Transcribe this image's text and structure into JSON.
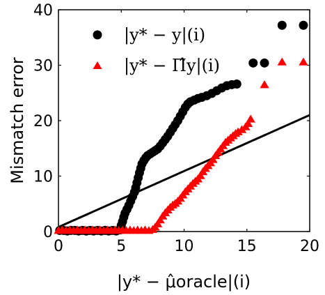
{
  "chart_data": {
    "type": "scatter",
    "title": "",
    "xlabel": "|y* − μ̂oracle|(i)",
    "ylabel": "Mismatch error",
    "xlim": [
      0,
      20
    ],
    "ylim": [
      0,
      40
    ],
    "xticks": [
      "0",
      "5",
      "10",
      "15",
      "20"
    ],
    "yticks": [
      "0",
      "10",
      "20",
      "30",
      "40"
    ],
    "grid": false,
    "legend_position": "top-right",
    "series": [
      {
        "name": "|y* − y|(i)",
        "marker": "circle",
        "color": "#000000",
        "points": [
          [
            0.1,
            0.2
          ],
          [
            0.4,
            0.2
          ],
          [
            0.7,
            0.1
          ],
          [
            1.0,
            0.2
          ],
          [
            1.3,
            0.2
          ],
          [
            1.6,
            0.1
          ],
          [
            1.9,
            0.2
          ],
          [
            2.2,
            0.1
          ],
          [
            2.5,
            0.2
          ],
          [
            2.8,
            0.1
          ],
          [
            3.1,
            0.2
          ],
          [
            3.4,
            0.1
          ],
          [
            3.7,
            0.2
          ],
          [
            4.0,
            0.1
          ],
          [
            4.3,
            0.2
          ],
          [
            4.6,
            0.1
          ],
          [
            4.9,
            0.3
          ],
          [
            4.95,
            0.6
          ],
          [
            5.0,
            1.1
          ],
          [
            5.1,
            1.8
          ],
          [
            5.2,
            2.6
          ],
          [
            5.3,
            3.3
          ],
          [
            5.45,
            4.0
          ],
          [
            5.6,
            4.7
          ],
          [
            5.75,
            5.5
          ],
          [
            5.9,
            6.3
          ],
          [
            6.05,
            7.1
          ],
          [
            6.15,
            7.9
          ],
          [
            6.25,
            8.8
          ],
          [
            6.35,
            9.7
          ],
          [
            6.45,
            10.6
          ],
          [
            6.55,
            11.4
          ],
          [
            6.65,
            12.2
          ],
          [
            6.8,
            12.8
          ],
          [
            6.95,
            13.3
          ],
          [
            7.1,
            13.7
          ],
          [
            7.3,
            14.0
          ],
          [
            7.5,
            14.3
          ],
          [
            7.7,
            14.6
          ],
          [
            7.9,
            14.9
          ],
          [
            8.1,
            15.4
          ],
          [
            8.3,
            16.0
          ],
          [
            8.5,
            16.6
          ],
          [
            8.7,
            17.2
          ],
          [
            8.9,
            17.9
          ],
          [
            9.1,
            18.6
          ],
          [
            9.3,
            19.3
          ],
          [
            9.5,
            20.0
          ],
          [
            9.7,
            20.8
          ],
          [
            9.9,
            21.6
          ],
          [
            10.1,
            22.4
          ],
          [
            10.3,
            23.0
          ],
          [
            10.5,
            23.4
          ],
          [
            10.8,
            23.7
          ],
          [
            11.1,
            24.0
          ],
          [
            11.4,
            24.2
          ],
          [
            11.8,
            24.5
          ],
          [
            12.2,
            24.9
          ],
          [
            12.6,
            25.4
          ],
          [
            13.0,
            25.9
          ],
          [
            13.4,
            26.3
          ],
          [
            13.8,
            26.5
          ],
          [
            14.2,
            26.6
          ],
          [
            15.5,
            30.4
          ],
          [
            16.4,
            30.4
          ],
          [
            17.8,
            37.2
          ],
          [
            19.5,
            37.2
          ]
        ]
      },
      {
        "name": "|y* − Π̂y|(i)",
        "marker": "triangle",
        "color": "#ff0000",
        "points": [
          [
            0.0,
            0.1
          ],
          [
            0.3,
            0.2
          ],
          [
            0.6,
            0.1
          ],
          [
            0.9,
            0.2
          ],
          [
            1.2,
            0.1
          ],
          [
            1.5,
            0.2
          ],
          [
            1.8,
            0.1
          ],
          [
            2.1,
            0.2
          ],
          [
            2.4,
            0.1
          ],
          [
            2.7,
            0.2
          ],
          [
            3.0,
            0.1
          ],
          [
            3.3,
            0.2
          ],
          [
            3.6,
            0.1
          ],
          [
            3.9,
            0.2
          ],
          [
            4.2,
            0.1
          ],
          [
            4.5,
            0.2
          ],
          [
            4.8,
            0.1
          ],
          [
            5.1,
            0.2
          ],
          [
            5.4,
            0.1
          ],
          [
            5.7,
            0.2
          ],
          [
            6.0,
            0.1
          ],
          [
            6.3,
            0.2
          ],
          [
            6.6,
            0.1
          ],
          [
            6.9,
            0.2
          ],
          [
            7.2,
            0.1
          ],
          [
            7.5,
            0.3
          ],
          [
            7.7,
            0.7
          ],
          [
            7.9,
            1.3
          ],
          [
            8.1,
            2.0
          ],
          [
            8.3,
            2.7
          ],
          [
            8.5,
            3.3
          ],
          [
            8.7,
            3.8
          ],
          [
            8.9,
            4.3
          ],
          [
            9.1,
            4.7
          ],
          [
            9.3,
            5.0
          ],
          [
            9.5,
            5.4
          ],
          [
            9.7,
            5.9
          ],
          [
            9.9,
            6.5
          ],
          [
            10.1,
            7.1
          ],
          [
            10.3,
            7.6
          ],
          [
            10.5,
            8.1
          ],
          [
            10.7,
            8.6
          ],
          [
            10.9,
            9.0
          ],
          [
            11.1,
            9.4
          ],
          [
            11.3,
            10.0
          ],
          [
            11.5,
            10.7
          ],
          [
            11.7,
            11.3
          ],
          [
            11.9,
            11.8
          ],
          [
            12.1,
            12.3
          ],
          [
            12.3,
            12.9
          ],
          [
            12.5,
            13.6
          ],
          [
            12.7,
            14.2
          ],
          [
            12.9,
            14.8
          ],
          [
            13.1,
            15.4
          ],
          [
            13.3,
            16.0
          ],
          [
            13.5,
            16.4
          ],
          [
            13.7,
            16.8
          ],
          [
            13.9,
            17.2
          ],
          [
            14.1,
            17.6
          ],
          [
            14.3,
            17.9
          ],
          [
            14.6,
            18.3
          ],
          [
            14.9,
            18.8
          ],
          [
            15.1,
            19.4
          ],
          [
            15.3,
            20.2
          ],
          [
            16.4,
            26.4
          ],
          [
            17.8,
            30.5
          ],
          [
            19.5,
            30.5
          ]
        ]
      },
      {
        "name": "",
        "marker": "line",
        "color": "#000000",
        "points": [
          [
            0,
            0.8
          ],
          [
            20,
            21
          ]
        ]
      }
    ]
  }
}
